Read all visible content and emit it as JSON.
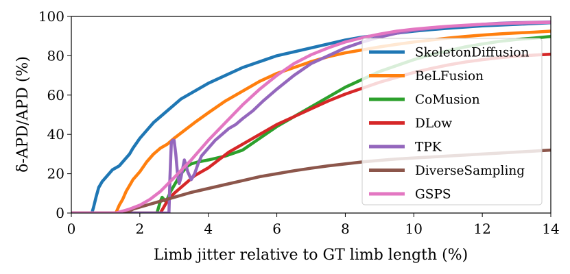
{
  "chart_data": {
    "type": "line",
    "title": "",
    "xlabel": "Limb jitter relative to GT limb length (%)",
    "ylabel": "δ-APD/APD (%)",
    "xlim": [
      0,
      14
    ],
    "ylim": [
      0,
      100
    ],
    "xticks": [
      0,
      2,
      4,
      6,
      8,
      10,
      12,
      14
    ],
    "yticks": [
      0,
      20,
      40,
      60,
      80,
      100
    ],
    "grid": false,
    "legend_position": "right",
    "series": [
      {
        "name": "SkeletonDiffusion",
        "color": "#1f77b4",
        "x": [
          0,
          0.6,
          0.65,
          0.72,
          0.8,
          0.9,
          1.0,
          1.1,
          1.2,
          1.3,
          1.4,
          1.5,
          1.6,
          1.7,
          1.8,
          2.0,
          2.2,
          2.4,
          2.6,
          2.8,
          3.0,
          3.2,
          3.5,
          4.0,
          4.5,
          5.0,
          5.5,
          6.0,
          6.5,
          7.0,
          7.5,
          8.0,
          8.5,
          9.0,
          9.5,
          10.0,
          10.5,
          11.0,
          11.5,
          12.0,
          12.5,
          13.0,
          13.5,
          14.0
        ],
        "y": [
          0,
          0,
          3,
          8,
          13,
          16,
          18,
          20,
          22,
          23,
          24,
          26,
          28,
          30,
          33,
          38,
          42,
          46,
          49,
          52,
          55,
          58,
          61,
          66,
          70,
          74,
          77,
          80,
          82,
          84,
          86,
          88,
          89.5,
          90.5,
          91.5,
          92.5,
          93.3,
          94,
          94.6,
          95.2,
          95.6,
          96,
          96.4,
          96.8
        ]
      },
      {
        "name": "BeLFusion",
        "color": "#ff7f0e",
        "x": [
          0,
          1.3,
          1.35,
          1.4,
          1.5,
          1.6,
          1.7,
          1.8,
          1.9,
          2.0,
          2.2,
          2.4,
          2.6,
          2.8,
          3.0,
          3.3,
          3.6,
          4.0,
          4.5,
          5.0,
          5.5,
          6.0,
          6.5,
          7.0,
          7.5,
          8.0,
          8.5,
          9.0,
          9.5,
          10.0,
          10.5,
          11.0,
          11.5,
          12.0,
          12.5,
          13.0,
          13.5,
          14.0
        ],
        "y": [
          0,
          0,
          2,
          4,
          7,
          11,
          14,
          17,
          19,
          21,
          26,
          30,
          33,
          35,
          38,
          42,
          46,
          51,
          57,
          62,
          67,
          71,
          74,
          77,
          79.5,
          81.5,
          83,
          84.5,
          85.8,
          87,
          88,
          89,
          89.8,
          90.5,
          91.1,
          91.6,
          92,
          92.5
        ]
      },
      {
        "name": "CoMusion",
        "color": "#2ca02c",
        "x": [
          0,
          2.5,
          2.55,
          2.6,
          2.65,
          2.7,
          2.75,
          2.8,
          2.85,
          2.9,
          3.0,
          3.1,
          3.2,
          3.3,
          3.4,
          3.5,
          3.7,
          4.0,
          4.5,
          5.0,
          5.5,
          6.0,
          6.5,
          7.0,
          7.5,
          8.0,
          8.5,
          9.0,
          9.5,
          10.0,
          10.5,
          11.0,
          11.5,
          12.0,
          12.5,
          13.0,
          13.5,
          14.0
        ],
        "y": [
          0,
          0,
          3,
          6,
          8,
          7,
          6,
          7,
          9,
          11,
          14,
          17,
          20,
          22,
          24,
          25,
          26,
          27,
          29,
          32,
          38,
          44,
          49,
          54,
          59,
          64,
          68,
          72,
          75,
          78,
          80.5,
          82.5,
          84.5,
          86,
          87.3,
          88.3,
          89,
          89.8
        ]
      },
      {
        "name": "DLow",
        "color": "#d62728",
        "x": [
          0,
          2.6,
          2.7,
          2.8,
          2.9,
          3.0,
          3.2,
          3.4,
          3.6,
          3.8,
          4.0,
          4.3,
          4.6,
          5.0,
          5.5,
          6.0,
          6.5,
          7.0,
          7.5,
          8.0,
          8.5,
          9.0,
          9.5,
          10.0,
          10.5,
          11.0,
          11.5,
          12.0,
          12.5,
          13.0,
          13.5,
          14.0
        ],
        "y": [
          0,
          0,
          3,
          6,
          8,
          10,
          13,
          16,
          19,
          21,
          23,
          27,
          31,
          35,
          40,
          45,
          49,
          53,
          57,
          60.5,
          63.5,
          66.5,
          69,
          71.5,
          73.5,
          75.3,
          76.8,
          78,
          79,
          79.8,
          80.3,
          80.8
        ]
      },
      {
        "name": "TPK",
        "color": "#9467bd",
        "x": [
          0,
          2.85,
          2.88,
          2.92,
          2.96,
          3.0,
          3.05,
          3.1,
          3.15,
          3.2,
          3.3,
          3.4,
          3.5,
          3.6,
          3.7,
          3.8,
          4.0,
          4.2,
          4.4,
          4.6,
          4.8,
          5.0,
          5.3,
          5.6,
          6.0,
          6.5,
          7.0,
          7.5,
          8.0,
          8.5,
          9.0,
          9.5,
          10.0,
          10.5,
          11.0,
          11.5,
          12.0,
          12.5,
          13.0,
          13.5,
          14.0
        ],
        "y": [
          0,
          0,
          18,
          36,
          37,
          37,
          30,
          20,
          15,
          18,
          27,
          21,
          17,
          20,
          25,
          29,
          33,
          37,
          40,
          43,
          45,
          48,
          52,
          57,
          63,
          70,
          76,
          80,
          84,
          87,
          89.5,
          91.5,
          93,
          94,
          94.8,
          95.4,
          96,
          96.5,
          96.8,
          97,
          97.2
        ]
      },
      {
        "name": "DiverseSampling",
        "color": "#8c564b",
        "x": [
          0,
          1.6,
          1.7,
          1.8,
          2.0,
          2.2,
          2.5,
          3.0,
          3.5,
          4.0,
          4.5,
          5.0,
          5.5,
          6.0,
          6.5,
          7.0,
          7.5,
          8.0,
          8.5,
          9.0,
          9.5,
          10.0,
          10.5,
          11.0,
          11.5,
          12.0,
          12.5,
          13.0,
          13.5,
          14.0
        ],
        "y": [
          0,
          0,
          1,
          2,
          3,
          4,
          5.5,
          8,
          10.5,
          12.5,
          14.5,
          16.5,
          18.5,
          20,
          21.5,
          22.8,
          24,
          25,
          26,
          26.8,
          27.5,
          28,
          28.5,
          29,
          29.5,
          30,
          30.5,
          31,
          31.5,
          32
        ]
      },
      {
        "name": "GSPS",
        "color": "#e377c2",
        "x": [
          0,
          1.3,
          1.5,
          1.7,
          2.0,
          2.3,
          2.6,
          3.0,
          3.5,
          4.0,
          4.5,
          5.0,
          5.5,
          6.0,
          6.5,
          7.0,
          7.5,
          8.0,
          8.5,
          9.0,
          9.5,
          10.0,
          10.5,
          11.0,
          11.5,
          12.0,
          12.5,
          13.0,
          13.5,
          14.0
        ],
        "y": [
          0,
          0,
          1,
          2,
          4,
          7,
          11,
          18,
          27,
          37,
          46,
          55,
          63,
          70,
          76,
          80.5,
          84,
          87,
          89.2,
          91,
          92.5,
          93.5,
          94.3,
          95,
          95.5,
          96,
          96.3,
          96.6,
          96.8,
          97
        ]
      }
    ]
  }
}
